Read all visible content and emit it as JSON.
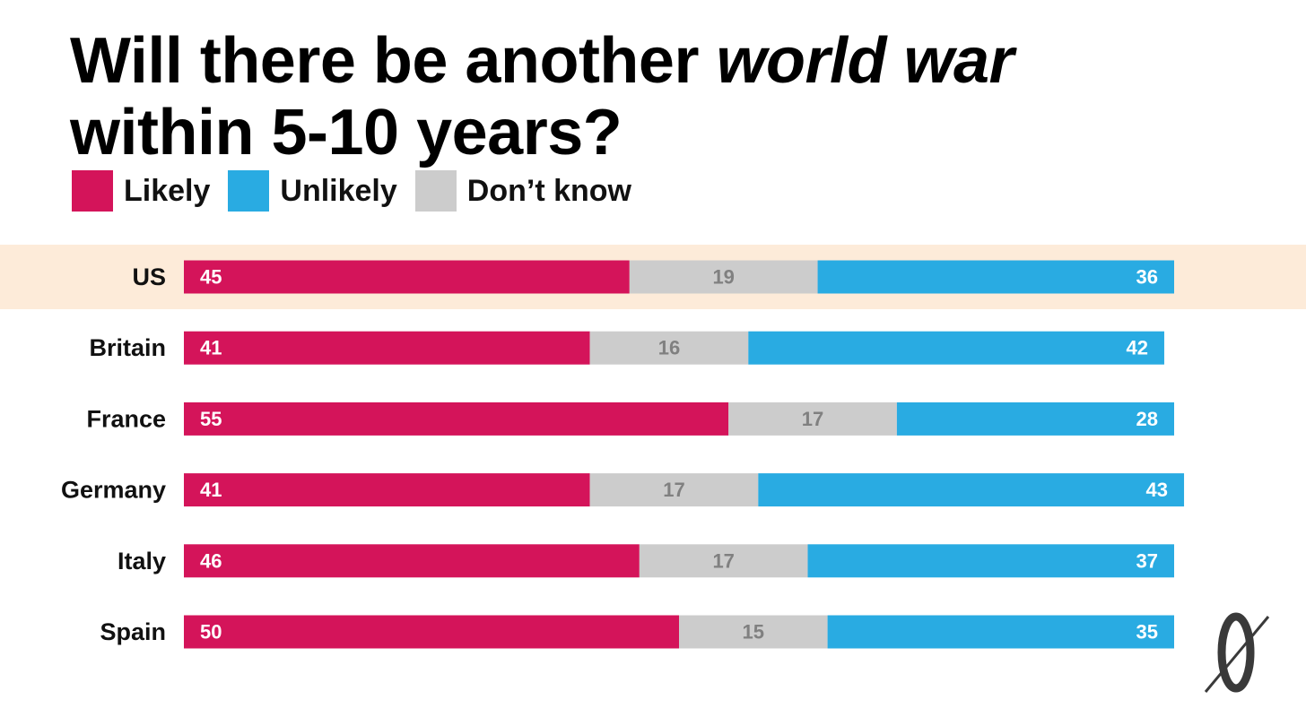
{
  "title_line1_prefix": "Will there be another ",
  "title_line1_emph": "world war",
  "title_line2": "within 5-10 years?",
  "legend": [
    {
      "label": "Likely",
      "color": "#d4145a"
    },
    {
      "label": "Unlikely",
      "color": "#29abe2"
    },
    {
      "label": "Don’t know",
      "color": "#cccccc"
    }
  ],
  "colors": {
    "likely": "#d4145a",
    "unlikely": "#29abe2",
    "dont_know": "#cccccc",
    "dont_know_text": "#808080",
    "highlight": "#fdebd9"
  },
  "logo_icon": "slashed-zero-logo-icon",
  "chart_data": {
    "type": "bar",
    "stacked": true,
    "orientation": "horizontal",
    "categories": [
      "US",
      "Britain",
      "France",
      "Germany",
      "Italy",
      "Spain"
    ],
    "highlighted_category": "US",
    "series": [
      {
        "name": "Likely",
        "values": [
          45,
          41,
          55,
          41,
          46,
          50
        ]
      },
      {
        "name": "Don’t know",
        "values": [
          19,
          16,
          17,
          17,
          17,
          15
        ]
      },
      {
        "name": "Unlikely",
        "values": [
          36,
          42,
          28,
          43,
          37,
          35
        ]
      }
    ],
    "title": "Will there be another world war within 5-10 years?",
    "xlim": [
      0,
      100
    ],
    "grid": false,
    "legend_position": "top-left"
  }
}
